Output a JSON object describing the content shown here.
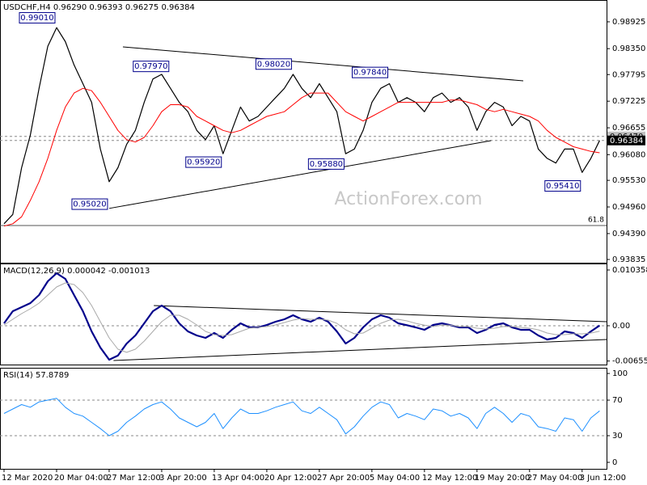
{
  "chart_data": [
    {
      "type": "line",
      "title": "USDCHF,H4  0.96290 0.96393 0.96275 0.96384",
      "watermark": "ActionForex.com",
      "categories": [
        "12 Mar 2020",
        null,
        null,
        null,
        null,
        null,
        "20 Mar 04:00",
        null,
        null,
        null,
        null,
        null,
        "27 Mar 12:00",
        null,
        null,
        null,
        null,
        null,
        "3 Apr 20:00",
        null,
        null,
        null,
        null,
        null,
        "13 Apr 04:00",
        null,
        null,
        null,
        null,
        null,
        "20 Apr 12:00",
        null,
        null,
        null,
        null,
        null,
        "27 Apr 20:00",
        null,
        null,
        null,
        null,
        null,
        "5 May 04:00",
        null,
        null,
        null,
        null,
        null,
        "12 May 12:00",
        null,
        null,
        null,
        null,
        null,
        "19 May 20:00",
        null,
        null,
        null,
        null,
        null,
        "27 May 04:00",
        null,
        null,
        null,
        null,
        null,
        "3 Jun 12:00",
        null,
        null
      ],
      "series": [
        {
          "color": "#000000",
          "width": 1.2,
          "values": [
            0.946,
            0.948,
            0.958,
            0.965,
            0.975,
            0.984,
            0.988,
            0.985,
            0.98,
            0.976,
            0.972,
            0.962,
            0.955,
            0.958,
            0.963,
            0.966,
            0.972,
            0.977,
            0.978,
            0.975,
            0.972,
            0.97,
            0.966,
            0.964,
            0.967,
            0.961,
            0.966,
            0.971,
            0.968,
            0.969,
            0.971,
            0.973,
            0.975,
            0.978,
            0.975,
            0.973,
            0.976,
            0.973,
            0.97,
            0.961,
            0.962,
            0.966,
            0.972,
            0.975,
            0.976,
            0.972,
            0.973,
            0.972,
            0.97,
            0.973,
            0.974,
            0.972,
            0.973,
            0.971,
            0.966,
            0.97,
            0.972,
            0.971,
            0.967,
            0.969,
            0.968,
            0.962,
            0.96,
            0.959,
            0.962,
            0.962,
            0.957,
            0.96,
            0.96384
          ]
        },
        {
          "color": "#ff0000",
          "width": 1,
          "values": [
            0.9455,
            0.946,
            0.9475,
            0.951,
            0.955,
            0.96,
            0.966,
            0.971,
            0.974,
            0.975,
            0.9745,
            0.972,
            0.969,
            0.966,
            0.964,
            0.9635,
            0.9645,
            0.967,
            0.97,
            0.9715,
            0.9715,
            0.971,
            0.969,
            0.968,
            0.967,
            0.966,
            0.9655,
            0.966,
            0.967,
            0.968,
            0.969,
            0.9695,
            0.97,
            0.9715,
            0.973,
            0.974,
            0.974,
            0.974,
            0.972,
            0.97,
            0.969,
            0.968,
            0.969,
            0.97,
            0.971,
            0.972,
            0.972,
            0.972,
            0.972,
            0.972,
            0.972,
            0.9725,
            0.9725,
            0.972,
            0.9715,
            0.9705,
            0.97,
            0.9705,
            0.97,
            0.9695,
            0.969,
            0.968,
            0.966,
            0.9645,
            0.9635,
            0.9625,
            0.962,
            0.9615,
            0.9612
          ]
        }
      ],
      "ylim": [
        0.93766,
        0.99392
      ],
      "yticks": [
        0.98925,
        {
          "value": 0.9835,
          "label": "0.98350"
        },
        0.97795,
        0.97225,
        0.96655,
        {
          "value": 0.9608,
          "label": "0.96080"
        },
        {
          "value": 0.9553,
          "label": "0.95530"
        },
        {
          "value": 0.9496,
          "label": "0.94960"
        },
        {
          "value": 0.9439,
          "label": "0.94390"
        },
        0.93835
      ],
      "levels": [
        {
          "value": 0.9647,
          "label": "0.96470"
        },
        {
          "value": 0.96384,
          "label": "0.96384"
        }
      ],
      "fib": {
        "value": 0.94562,
        "label": "61.8"
      },
      "trendlines": [
        {
          "from": [
            13.57,
            0.98388
          ],
          "to": [
            59.28,
            0.97661
          ]
        },
        {
          "from": [
            12,
            0.94929
          ],
          "to": [
            55.6,
            0.96379
          ]
        }
      ],
      "annotations": [
        {
          "label": "0.99010",
          "value": 0.9901,
          "x": 6
        },
        {
          "label": "0.97970",
          "value": 0.9797,
          "x": 19
        },
        {
          "label": "0.98020",
          "value": 0.9802,
          "x": 33
        },
        {
          "label": "0.97840",
          "value": 0.9784,
          "x": 44
        },
        {
          "label": "0.95920",
          "value": 0.9592,
          "x": 25
        },
        {
          "label": "0.95880",
          "value": 0.9588,
          "x": 39
        },
        {
          "label": "0.95020",
          "value": 0.9502,
          "x": 12
        },
        {
          "label": "0.95410",
          "value": 0.9541,
          "x": 66
        }
      ]
    },
    {
      "type": "line",
      "title": "MACD(12,26,9) 0.000042 -0.001013",
      "series": [
        {
          "color": "#00008b",
          "width": 2.2,
          "values": [
            0.00045,
            0.0027,
            0.00345,
            0.0042,
            0.0057,
            0.00826,
            0.00976,
            0.00871,
            0.0057,
            0.0027,
            -0.00105,
            -0.00405,
            -0.00631,
            -0.00555,
            -0.0033,
            -0.0018,
            0.00045,
            0.0027,
            0.00375,
            0.0027,
            0.00045,
            -0.00105,
            -0.0018,
            -0.00225,
            -0.00135,
            -0.00225,
            -0.00075,
            0.00045,
            -0.0003,
            -0.0003,
            0.00015,
            0.00075,
            0.0012,
            0.00195,
            0.0012,
            0.00075,
            0.0015,
            0.00075,
            -0.00105,
            -0.0033,
            -0.00225,
            -0.0003,
            0.0012,
            0.00195,
            0.0015,
            0.00045,
            0.0001,
            -0.0003,
            -0.00075,
            0.00015,
            0.00045,
            0.0001,
            -0.0003,
            -0.0003,
            -0.00135,
            -0.00075,
            0.00015,
            0.00045,
            -0.0003,
            -0.00075,
            -0.00075,
            -0.0018,
            -0.00255,
            -0.00225,
            -0.00105,
            -0.00135,
            -0.00225,
            -0.00105,
            4.2e-05
          ]
        },
        {
          "color": "#a9a9a9",
          "width": 1,
          "values": [
            0.00015,
            0.0012,
            0.00225,
            0.00315,
            0.0042,
            0.0057,
            0.0072,
            0.00796,
            0.00766,
            0.00616,
            0.00375,
            0.00075,
            -0.00225,
            -0.00435,
            -0.00495,
            -0.00435,
            -0.00285,
            -0.00105,
            0.00075,
            0.00195,
            0.00195,
            0.0012,
            0.00015,
            -0.00105,
            -0.00165,
            -0.0018,
            -0.00165,
            -0.00105,
            -0.00045,
            -0.0003,
            -0.00015,
            0.00015,
            0.0006,
            0.00105,
            0.00135,
            0.0012,
            0.0012,
            0.00105,
            0.00045,
            -0.00075,
            -0.0015,
            -0.00135,
            -0.00045,
            0.00045,
            0.00105,
            0.0012,
            0.0009,
            0.00045,
            0.0001,
            -0.00015,
            0.0001,
            0.0001,
            -0.00015,
            -0.00015,
            -0.00045,
            -0.0006,
            -0.00045,
            -0.00015,
            -0.00015,
            -0.0003,
            -0.00045,
            -0.00075,
            -0.00135,
            -0.00165,
            -0.00165,
            -0.0015,
            -0.0015,
            -0.00135,
            -0.001013
          ]
        }
      ],
      "ylim": [
        -0.00721,
        0.01156
      ],
      "yticks": [
        0.010358,
        {
          "value": 0,
          "label": "0.00"
        },
        -0.006553
      ],
      "levels": [
        0
      ],
      "trendlines": [
        {
          "from": [
            17.1,
            0.00375
          ],
          "to": [
            68.8,
            0.00075
          ]
        },
        {
          "from": [
            12.5,
            -0.00646
          ],
          "to": [
            68.8,
            -0.00255
          ]
        }
      ]
    },
    {
      "type": "line",
      "title": "RSI(14) 57.8789",
      "series": [
        {
          "color": "#1e90ff",
          "width": 1,
          "values": [
            55,
            60,
            65,
            62,
            68,
            70,
            72,
            62,
            55,
            52,
            45,
            38,
            30,
            35,
            45,
            52,
            60,
            65,
            68,
            60,
            50,
            45,
            40,
            45,
            55,
            38,
            50,
            60,
            55,
            55,
            58,
            62,
            65,
            68,
            58,
            55,
            62,
            55,
            48,
            32,
            40,
            52,
            62,
            68,
            65,
            50,
            55,
            52,
            48,
            60,
            58,
            52,
            55,
            50,
            38,
            55,
            62,
            55,
            45,
            55,
            52,
            40,
            38,
            35,
            50,
            48,
            35,
            50,
            57.8789
          ]
        }
      ],
      "ylim": [
        -7.3,
        106.4
      ],
      "yticks": [
        100,
        70,
        30,
        0
      ],
      "levels": [
        70,
        30
      ]
    }
  ]
}
